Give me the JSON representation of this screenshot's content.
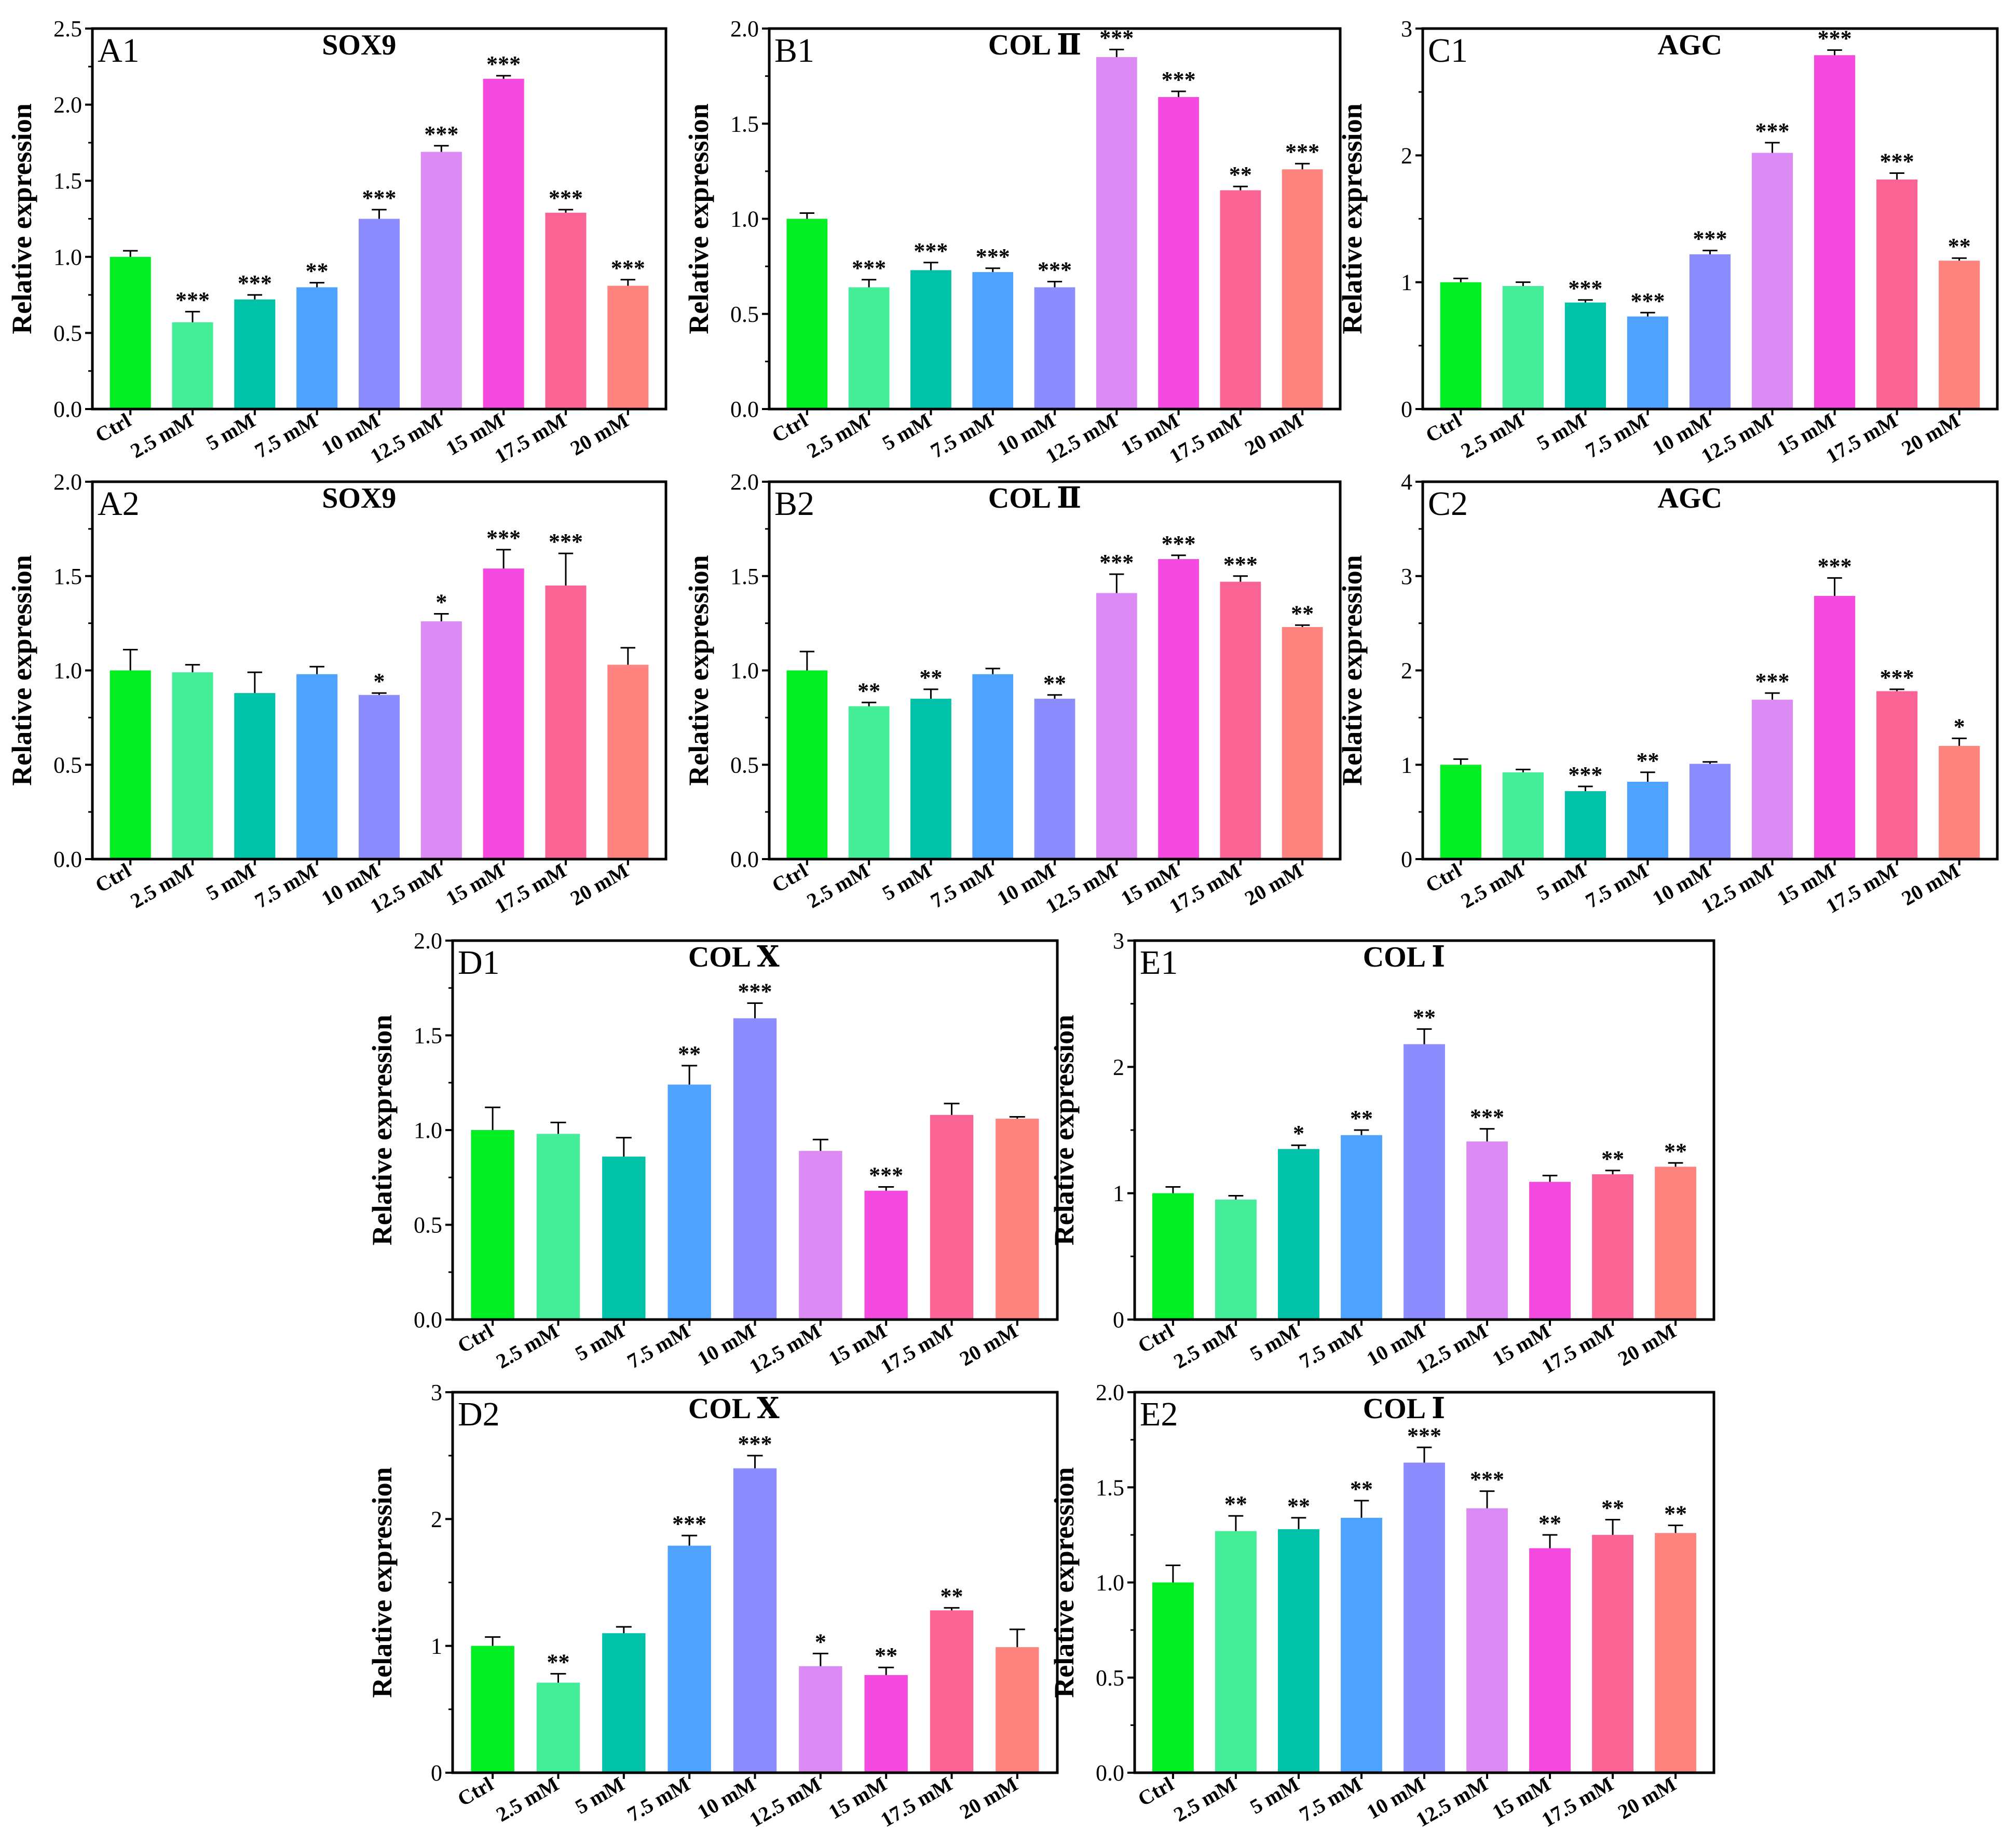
{
  "chart_data": [
    {
      "id": "A1",
      "type": "bar",
      "label": "A1",
      "title": "SOX9",
      "ylabel": "Relative expression",
      "ylim": [
        0,
        2.5
      ],
      "yticks": [
        "0.0",
        "0.5",
        "1.0",
        "1.5",
        "2.0",
        "2.5"
      ],
      "categories": [
        "Ctrl",
        "2.5 mM",
        "5 mM",
        "7.5 mM",
        "10 mM",
        "12.5 mM",
        "15 mM",
        "17.5 mM",
        "20 mM"
      ],
      "values": [
        1.0,
        0.57,
        0.72,
        0.8,
        1.25,
        1.69,
        2.17,
        1.29,
        0.81
      ],
      "errors": [
        0.04,
        0.07,
        0.03,
        0.03,
        0.06,
        0.04,
        0.02,
        0.02,
        0.04
      ],
      "significance": [
        "",
        "***",
        "***",
        "**",
        "***",
        "***",
        "***",
        "***",
        "***"
      ]
    },
    {
      "id": "B1",
      "type": "bar",
      "label": "B1",
      "title": "COL Ⅱ",
      "ylabel": "Relative expression",
      "ylim": [
        0,
        2.0
      ],
      "yticks": [
        "0.0",
        "0.5",
        "1.0",
        "1.5",
        "2.0"
      ],
      "categories": [
        "Ctrl",
        "2.5 mM",
        "5 mM",
        "7.5 mM",
        "10 mM",
        "12.5 mM",
        "15 mM",
        "17.5 mM",
        "20 mM"
      ],
      "values": [
        1.0,
        0.64,
        0.73,
        0.72,
        0.64,
        1.85,
        1.64,
        1.15,
        1.26
      ],
      "errors": [
        0.03,
        0.04,
        0.04,
        0.02,
        0.03,
        0.04,
        0.03,
        0.02,
        0.03
      ],
      "significance": [
        "",
        "***",
        "***",
        "***",
        "***",
        "***",
        "***",
        "**",
        "***"
      ]
    },
    {
      "id": "C1",
      "type": "bar",
      "label": "C1",
      "title": "AGC",
      "ylabel": "Relative expression",
      "ylim": [
        0,
        3
      ],
      "yticks": [
        "0",
        "1",
        "2",
        "3"
      ],
      "categories": [
        "Ctrl",
        "2.5 mM",
        "5 mM",
        "7.5 mM",
        "10 mM",
        "12.5 mM",
        "15 mM",
        "17.5 mM",
        "20 mM"
      ],
      "values": [
        1.0,
        0.97,
        0.84,
        0.73,
        1.22,
        2.02,
        2.79,
        1.81,
        1.17
      ],
      "errors": [
        0.03,
        0.03,
        0.02,
        0.03,
        0.03,
        0.08,
        0.04,
        0.05,
        0.02
      ],
      "significance": [
        "",
        "",
        "***",
        "***",
        "***",
        "***",
        "***",
        "***",
        "**"
      ]
    },
    {
      "id": "A2",
      "type": "bar",
      "label": "A2",
      "title": "SOX9",
      "ylabel": "Relative expression",
      "ylim": [
        0,
        2.0
      ],
      "yticks": [
        "0.0",
        "0.5",
        "1.0",
        "1.5",
        "2.0"
      ],
      "categories": [
        "Ctrl",
        "2.5 mM",
        "5 mM",
        "7.5 mM",
        "10 mM",
        "12.5 mM",
        "15 mM",
        "17.5 mM",
        "20 mM"
      ],
      "values": [
        1.0,
        0.99,
        0.88,
        0.98,
        0.87,
        1.26,
        1.54,
        1.45,
        1.03
      ],
      "errors": [
        0.11,
        0.04,
        0.11,
        0.04,
        0.01,
        0.04,
        0.1,
        0.17,
        0.09
      ],
      "significance": [
        "",
        "",
        "",
        "",
        "*",
        "*",
        "***",
        "***",
        ""
      ]
    },
    {
      "id": "B2",
      "type": "bar",
      "label": "B2",
      "title": "COL Ⅱ",
      "ylabel": "Relative expression",
      "ylim": [
        0,
        2.0
      ],
      "yticks": [
        "0.0",
        "0.5",
        "1.0",
        "1.5",
        "2.0"
      ],
      "categories": [
        "Ctrl",
        "2.5 mM",
        "5 mM",
        "7.5 mM",
        "10 mM",
        "12.5 mM",
        "15 mM",
        "17.5 mM",
        "20 mM"
      ],
      "values": [
        1.0,
        0.81,
        0.85,
        0.98,
        0.85,
        1.41,
        1.59,
        1.47,
        1.23
      ],
      "errors": [
        0.1,
        0.02,
        0.05,
        0.03,
        0.02,
        0.1,
        0.02,
        0.03,
        0.01
      ],
      "significance": [
        "",
        "**",
        "**",
        "",
        "**",
        "***",
        "***",
        "***",
        "**"
      ]
    },
    {
      "id": "C2",
      "type": "bar",
      "label": "C2",
      "title": "AGC",
      "ylabel": "Relative expression",
      "ylim": [
        0,
        4
      ],
      "yticks": [
        "0",
        "1",
        "2",
        "3",
        "4"
      ],
      "categories": [
        "Ctrl",
        "2.5 mM",
        "5 mM",
        "7.5 mM",
        "10 mM",
        "12.5 mM",
        "15 mM",
        "17.5 mM",
        "20 mM"
      ],
      "values": [
        1.0,
        0.92,
        0.72,
        0.82,
        1.01,
        1.69,
        2.79,
        1.78,
        1.2
      ],
      "errors": [
        0.06,
        0.03,
        0.05,
        0.1,
        0.02,
        0.07,
        0.19,
        0.02,
        0.08
      ],
      "significance": [
        "",
        "",
        "***",
        "**",
        "",
        "***",
        "***",
        "***",
        "*"
      ]
    },
    {
      "id": "D1",
      "type": "bar",
      "label": "D1",
      "title": "COL Ⅹ",
      "ylabel": "Relative expression",
      "ylim": [
        0,
        2.0
      ],
      "yticks": [
        "0.0",
        "0.5",
        "1.0",
        "1.5",
        "2.0"
      ],
      "categories": [
        "Ctrl",
        "2.5 mM",
        "5 mM",
        "7.5 mM",
        "10 mM",
        "12.5 mM",
        "15 mM",
        "17.5 mM",
        "20 mM"
      ],
      "values": [
        1.0,
        0.98,
        0.86,
        1.24,
        1.59,
        0.89,
        0.68,
        1.08,
        1.06
      ],
      "errors": [
        0.12,
        0.06,
        0.1,
        0.1,
        0.08,
        0.06,
        0.02,
        0.06,
        0.01
      ],
      "significance": [
        "",
        "",
        "",
        "**",
        "***",
        "",
        "***",
        "",
        ""
      ]
    },
    {
      "id": "E1",
      "type": "bar",
      "label": "E1",
      "title": "COL Ⅰ",
      "ylabel": "Relative expression",
      "ylim": [
        0,
        3
      ],
      "yticks": [
        "0",
        "1",
        "2",
        "3"
      ],
      "categories": [
        "Ctrl",
        "2.5 mM",
        "5 mM",
        "7.5 mM",
        "10 mM",
        "12.5 mM",
        "15 mM",
        "17.5 mM",
        "20 mM"
      ],
      "values": [
        1.0,
        0.95,
        1.35,
        1.46,
        2.18,
        1.41,
        1.09,
        1.15,
        1.21
      ],
      "errors": [
        0.05,
        0.03,
        0.03,
        0.04,
        0.12,
        0.1,
        0.05,
        0.03,
        0.03
      ],
      "significance": [
        "",
        "",
        "*",
        "**",
        "**",
        "***",
        "",
        "**",
        "**"
      ]
    },
    {
      "id": "D2",
      "type": "bar",
      "label": "D2",
      "title": "COL Ⅹ",
      "ylabel": "Relative expression",
      "ylim": [
        0,
        3
      ],
      "yticks": [
        "0",
        "1",
        "2",
        "3"
      ],
      "categories": [
        "Ctrl",
        "2.5 mM",
        "5 mM",
        "7.5 mM",
        "10 mM",
        "12.5 mM",
        "15 mM",
        "17.5 mM",
        "20 mM"
      ],
      "values": [
        1.0,
        0.71,
        1.1,
        1.79,
        2.4,
        0.84,
        0.77,
        1.28,
        0.99
      ],
      "errors": [
        0.07,
        0.07,
        0.05,
        0.08,
        0.1,
        0.1,
        0.06,
        0.02,
        0.14
      ],
      "significance": [
        "",
        "**",
        "",
        "***",
        "***",
        "*",
        "**",
        "**",
        ""
      ]
    },
    {
      "id": "E2",
      "type": "bar",
      "label": "E2",
      "title": "COL Ⅰ",
      "ylabel": "Relative expression",
      "ylim": [
        0,
        2.0
      ],
      "yticks": [
        "0.0",
        "0.5",
        "1.0",
        "1.5",
        "2.0"
      ],
      "categories": [
        "Ctrl",
        "2.5 mM",
        "5 mM",
        "7.5 mM",
        "10 mM",
        "12.5 mM",
        "15 mM",
        "17.5 mM",
        "20 mM"
      ],
      "values": [
        1.0,
        1.27,
        1.28,
        1.34,
        1.63,
        1.39,
        1.18,
        1.25,
        1.26
      ],
      "errors": [
        0.09,
        0.08,
        0.06,
        0.09,
        0.08,
        0.09,
        0.07,
        0.08,
        0.04
      ],
      "significance": [
        "",
        "**",
        "**",
        "**",
        "***",
        "***",
        "**",
        "**",
        "**"
      ]
    }
  ],
  "colors": {
    "bars": [
      "#00ee22",
      "#44ee99",
      "#00c2a8",
      "#4da3ff",
      "#8c8cff",
      "#dc8bf5",
      "#f44ae0",
      "#fa6495",
      "#ff8480"
    ],
    "axis": "#000000"
  }
}
